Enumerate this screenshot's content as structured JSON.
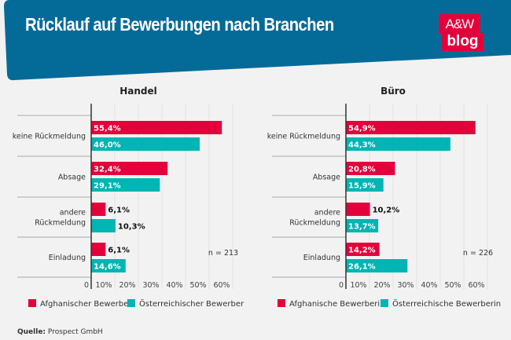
{
  "header": {
    "title": "Rücklauf auf Bewerbungen nach Branchen",
    "logo_top": "A&W",
    "logo_bottom": "blog"
  },
  "colors": {
    "header": "#046b99",
    "afghan": "#e4003b",
    "austrian": "#00b5b3"
  },
  "source": {
    "label": "Quelle:",
    "value": "Prospect GmbH"
  },
  "chart_data": [
    {
      "type": "bar",
      "orientation": "horizontal",
      "title": "Handel",
      "note": "n = 213",
      "categories": [
        "keine Rückmeldung",
        "Absage",
        "andere Rückmeldung",
        "Einladung"
      ],
      "xlim": [
        0,
        60
      ],
      "xticks": [
        "0",
        "10%",
        "20%",
        "30%",
        "40%",
        "50%",
        "60%"
      ],
      "grid": true,
      "legend": "bottom",
      "series": [
        {
          "name": "Afghanischer Bewerber",
          "values": [
            55.4,
            32.4,
            6.1,
            6.1
          ],
          "labels": [
            "55,4%",
            "32,4%",
            "6,1%",
            "6,1%"
          ]
        },
        {
          "name": "Österreichischer Bewerber",
          "values": [
            46.0,
            29.1,
            10.3,
            14.6
          ],
          "labels": [
            "46,0%",
            "29,1%",
            "10,3%",
            "14,6%"
          ]
        }
      ]
    },
    {
      "type": "bar",
      "orientation": "horizontal",
      "title": "Büro",
      "note": "n = 226",
      "categories": [
        "keine Rückmeldung",
        "Absage",
        "andere Rückmeldung",
        "Einladung"
      ],
      "xlim": [
        0,
        60
      ],
      "xticks": [
        "0",
        "10%",
        "20%",
        "30%",
        "40%",
        "50%",
        "60%"
      ],
      "grid": true,
      "legend": "bottom",
      "series": [
        {
          "name": "Afghanische Bewerberin",
          "values": [
            54.9,
            20.8,
            10.2,
            14.2
          ],
          "labels": [
            "54,9%",
            "20,8%",
            "10,2%",
            "14,2%"
          ]
        },
        {
          "name": "Österreichische Bewerberin",
          "values": [
            44.3,
            15.9,
            13.7,
            26.1
          ],
          "labels": [
            "44,3%",
            "15,9%",
            "13,7%",
            "26,1%"
          ]
        }
      ]
    }
  ]
}
